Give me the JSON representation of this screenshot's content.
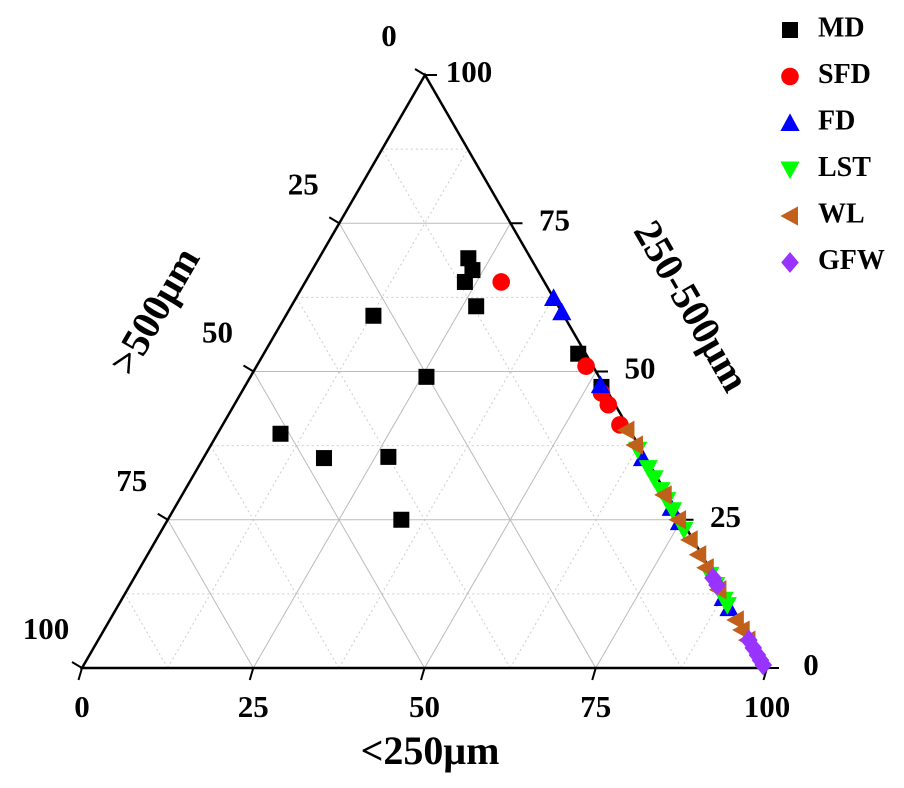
{
  "chart_data": {
    "type": "ternary",
    "axes": [
      {
        "title": "<250μm",
        "ticks": [
          0,
          25,
          50,
          75,
          100
        ]
      },
      {
        "title": "250-500μm",
        "ticks": [
          0,
          25,
          50,
          75,
          100
        ]
      },
      {
        "title": ">500μm",
        "ticks": [
          0,
          25,
          50,
          75,
          100
        ]
      }
    ],
    "minor_ticks": [
      12.5,
      37.5,
      62.5,
      87.5
    ],
    "grid": true,
    "legend": "top-right",
    "series": [
      {
        "name": "MD",
        "color": "#000000",
        "marker": "square",
        "values": [
          [
            21.8,
            69.1,
            9.1
          ],
          [
            23.4,
            67.1,
            9.5
          ],
          [
            23.3,
            65.1,
            11.6
          ],
          [
            27,
            61,
            12
          ],
          [
            12.8,
            59.4,
            27.8
          ],
          [
            25.7,
            49.1,
            25.2
          ],
          [
            45.9,
            53,
            1.1
          ],
          [
            52.1,
            47.4,
            0.5
          ],
          [
            9.2,
            39.5,
            51.3
          ],
          [
            17.6,
            35.4,
            47
          ],
          [
            26.9,
            35.6,
            37.5
          ],
          [
            34.1,
            25,
            40.9
          ]
        ]
      },
      {
        "name": "SFD",
        "color": "#ff0000",
        "marker": "circle",
        "values": [
          [
            28.6,
            65.1,
            6.3
          ],
          [
            48.1,
            50.9,
            1
          ],
          [
            52.6,
            46.4,
            1
          ],
          [
            54.6,
            44.4,
            1
          ],
          [
            58,
            41,
            1
          ]
        ]
      },
      {
        "name": "FD",
        "color": "#0000ff",
        "marker": "triangle-up",
        "values": [
          [
            37.6,
            62.4,
            0
          ],
          [
            40,
            60,
            0
          ],
          [
            51.8,
            47.7,
            0.5
          ],
          [
            64.1,
            35.4,
            0.5
          ],
          [
            72.5,
            27,
            0.5
          ],
          [
            74.9,
            24.6,
            0.5
          ],
          [
            87.7,
            11.8,
            0.5
          ],
          [
            89.4,
            10.1,
            0.5
          ]
        ]
      },
      {
        "name": "LST",
        "color": "#00ff00",
        "marker": "triangle-down",
        "values": [
          [
            62.7,
            36.8,
            0.5
          ],
          [
            65.8,
            33.7,
            0.5
          ],
          [
            67.5,
            32,
            0.5
          ],
          [
            69.5,
            30,
            0.5
          ],
          [
            71.2,
            28.3,
            0.5
          ],
          [
            72.9,
            26.6,
            0.5
          ],
          [
            76.2,
            23.3,
            0.5
          ],
          [
            83.8,
            15.7,
            0.5
          ],
          [
            85.5,
            14,
            0.5
          ],
          [
            88,
            11.5,
            0.5
          ],
          [
            88.9,
            10.6,
            0.5
          ]
        ]
      },
      {
        "name": "WL",
        "color": "#c0601a",
        "marker": "triangle-left",
        "values": [
          [
            59.4,
            40.1,
            0.5
          ],
          [
            61.9,
            37.6,
            0.5
          ],
          [
            70.3,
            29.2,
            0.5
          ],
          [
            74.5,
            25,
            0.5
          ],
          [
            77.9,
            21.6,
            0.5
          ],
          [
            80.4,
            19.1,
            0.5
          ],
          [
            82.6,
            16.9,
            0.5
          ],
          [
            86.3,
            13.2,
            0.5
          ],
          [
            91.4,
            8.1,
            0.5
          ],
          [
            93.1,
            6.4,
            0.5
          ],
          [
            94.8,
            4.7,
            0.5
          ]
        ]
      },
      {
        "name": "GFW",
        "color": "#9933ff",
        "marker": "diamond",
        "values": [
          [
            84.5,
            15.2,
            0.3
          ],
          [
            85.7,
            14,
            0.3
          ],
          [
            95,
            4.7,
            0.3
          ],
          [
            96.3,
            3.4,
            0.3
          ],
          [
            97.5,
            2.2,
            0.3
          ],
          [
            98.4,
            1.3,
            0.3
          ],
          [
            99.2,
            0.5,
            0.3
          ]
        ]
      }
    ]
  }
}
